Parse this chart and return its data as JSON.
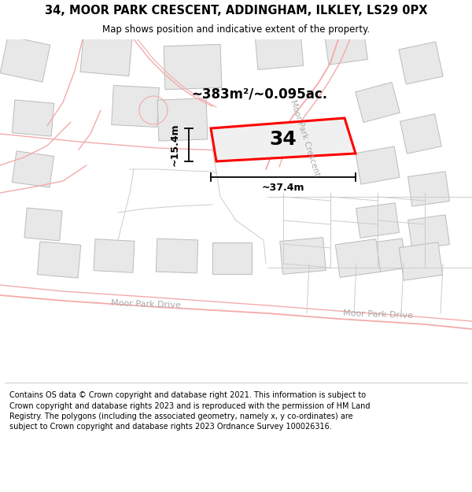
{
  "title": "34, MOOR PARK CRESCENT, ADDINGHAM, ILKLEY, LS29 0PX",
  "subtitle": "Map shows position and indicative extent of the property.",
  "footer": "Contains OS data © Crown copyright and database right 2021. This information is subject to Crown copyright and database rights 2023 and is reproduced with the permission of HM Land Registry. The polygons (including the associated geometry, namely x, y co-ordinates) are subject to Crown copyright and database rights 2023 Ordnance Survey 100026316.",
  "map_bg": "#ffffff",
  "header_bg": "#ffffff",
  "footer_bg": "#ffffff",
  "road_color": "#f4aaaa",
  "boundary_color": "#cccccc",
  "building_fill": "#e8e8e8",
  "building_edge": "#bbbbbb",
  "property_fill": "#f0f0f0",
  "property_outline": "#ff0000",
  "property_label": "34",
  "area_label": "~383m²/~0.095ac.",
  "width_label": "~37.4m",
  "height_label": "~15.4m",
  "road_label_crescent": "Moor Park Crescent",
  "road_label_drive_l": "Moor Park Drive",
  "road_label_drive_r": "Moor Park Drive",
  "figsize": [
    6.0,
    6.25
  ],
  "dpi": 100
}
